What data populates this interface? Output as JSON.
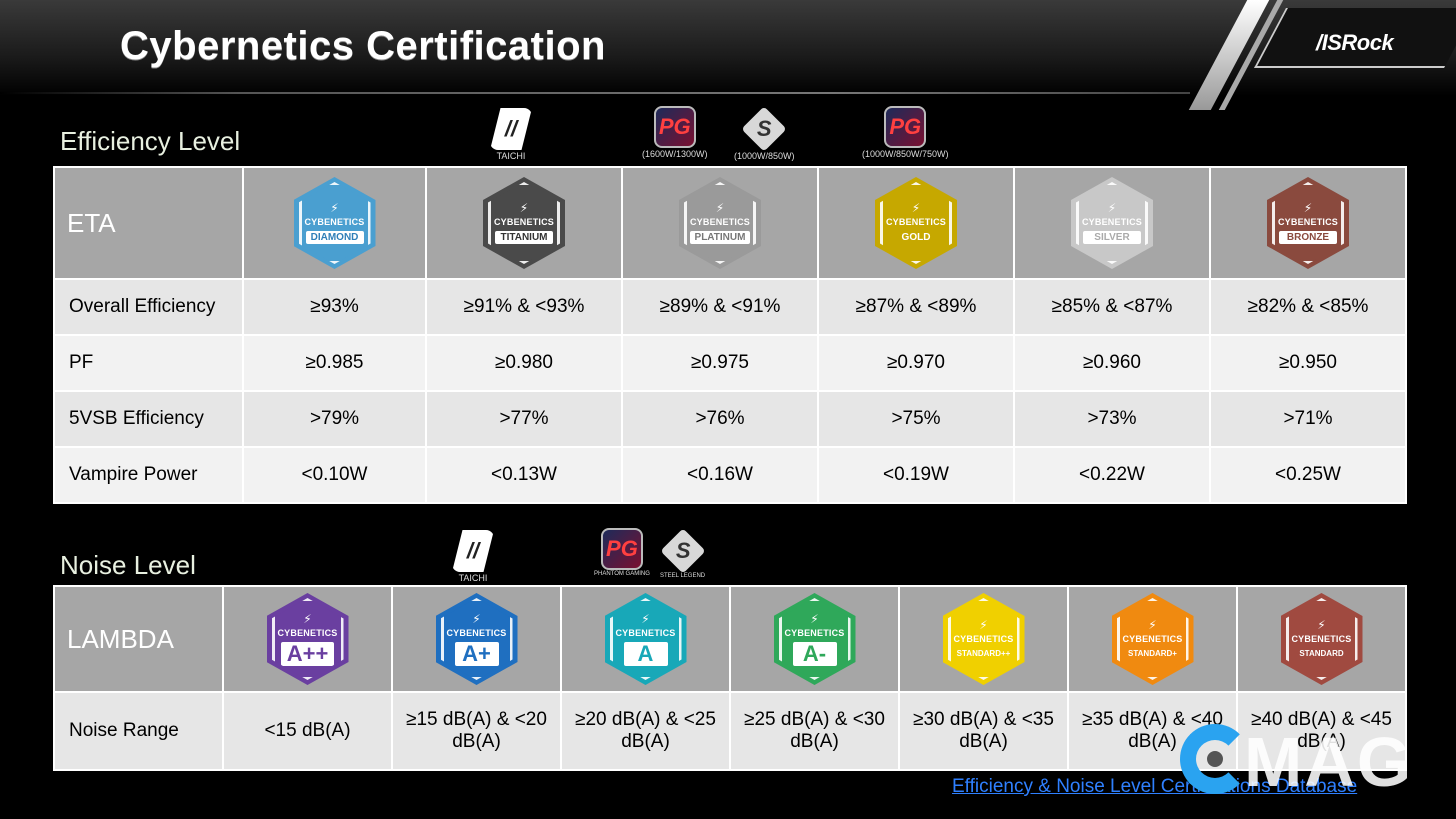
{
  "header": {
    "title": "Cybernetics Certification",
    "logo": "/ISRock"
  },
  "efficiency": {
    "section_title": "Efficiency Level",
    "brands": [
      {
        "icon": "taichi-logo-icon",
        "caption": "TAICHI"
      },
      {
        "icon": "phantom-gaming-logo-icon",
        "caption": "(1600W/1300W)"
      },
      {
        "icon": "steel-legend-logo-icon",
        "caption": "(1000W/850W)"
      },
      {
        "icon": "phantom-gaming-logo-icon",
        "caption": "(1000W/850W/750W)"
      }
    ],
    "header_label": "ETA",
    "badges": [
      {
        "brand": "CYBENETICS",
        "level": "DIAMOND",
        "color": "#4a9fd0",
        "text_color": "#2f7fb8"
      },
      {
        "brand": "CYBENETICS",
        "level": "TITANIUM",
        "color": "#4a4a4a",
        "text_color": "#333333"
      },
      {
        "brand": "CYBENETICS",
        "level": "PLATINUM",
        "color": "#9a9a9a",
        "text_color": "#777777"
      },
      {
        "brand": "CYBENETICS",
        "level": "GOLD",
        "color": "#c6a800",
        "text_color": "#ffffff",
        "level_bg": "#c6a800"
      },
      {
        "brand": "CYBENETICS",
        "level": "SILVER",
        "color": "#c8c8c8",
        "text_color": "#aaaaaa"
      },
      {
        "brand": "CYBENETICS",
        "level": "BRONZE",
        "color": "#8a4a3e",
        "text_color": "#8a4a3e"
      }
    ],
    "rows": [
      {
        "label": "Overall Efficiency",
        "values": [
          "≥93%",
          "≥91% & <93%",
          "≥89% & <91%",
          "≥87% & <89%",
          "≥85% & <87%",
          "≥82% & <85%"
        ]
      },
      {
        "label": "PF",
        "values": [
          "≥0.985",
          "≥0.980",
          "≥0.975",
          "≥0.970",
          "≥0.960",
          "≥0.950"
        ]
      },
      {
        "label": "5VSB Efficiency",
        "values": [
          ">79%",
          ">77%",
          ">76%",
          ">75%",
          ">73%",
          ">71%"
        ]
      },
      {
        "label": "Vampire Power",
        "values": [
          "<0.10W",
          "<0.13W",
          "<0.16W",
          "<0.19W",
          "<0.22W",
          "<0.25W"
        ]
      }
    ]
  },
  "noise": {
    "section_title": "Noise Level",
    "brands": [
      {
        "icon": "taichi-logo-icon",
        "caption": "TAICHI"
      },
      {
        "icon": "phantom-gaming-logo-icon",
        "caption": "PHANTOM GAMING"
      },
      {
        "icon": "steel-legend-logo-icon",
        "caption": "STEEL LEGEND"
      }
    ],
    "header_label": "LAMBDA",
    "badges": [
      {
        "brand": "CYBENETICS",
        "level": "A++",
        "color": "#6a3fa0",
        "text_color": "#6a3fa0",
        "size": "big"
      },
      {
        "brand": "CYBENETICS",
        "level": "A+",
        "color": "#1f6fc0",
        "text_color": "#1f6fc0",
        "size": "big"
      },
      {
        "brand": "CYBENETICS",
        "level": "A",
        "color": "#18a8b8",
        "text_color": "#18a8b8",
        "size": "big"
      },
      {
        "brand": "CYBENETICS",
        "level": "A-",
        "color": "#2fa85a",
        "text_color": "#2fa85a",
        "size": "big"
      },
      {
        "brand": "CYBENETICS",
        "level": "STANDARD++",
        "color": "#f0d000",
        "text_color": "#ffffff",
        "level_bg": "#f0d000",
        "size": "small"
      },
      {
        "brand": "CYBENETICS",
        "level": "STANDARD+",
        "color": "#f08a10",
        "text_color": "#ffffff",
        "level_bg": "#f08a10",
        "size": "small"
      },
      {
        "brand": "CYBENETICS",
        "level": "STANDARD",
        "color": "#a04a40",
        "text_color": "#ffffff",
        "level_bg": "#a04a40",
        "size": "small"
      }
    ],
    "rows": [
      {
        "label": "Noise Range",
        "values": [
          "<15 dB(A)",
          "≥15 dB(A) & <20 dB(A)",
          "≥20 dB(A) & <25 dB(A)",
          "≥25 dB(A) & <30 dB(A)",
          "≥30 dB(A) & <35 dB(A)",
          "≥35 dB(A) & <40 dB(A)",
          "≥40 dB(A) & <45 dB(A)"
        ]
      }
    ]
  },
  "footer_link": "Efficiency & Noise Level Certifications Database",
  "watermark": "MAG"
}
